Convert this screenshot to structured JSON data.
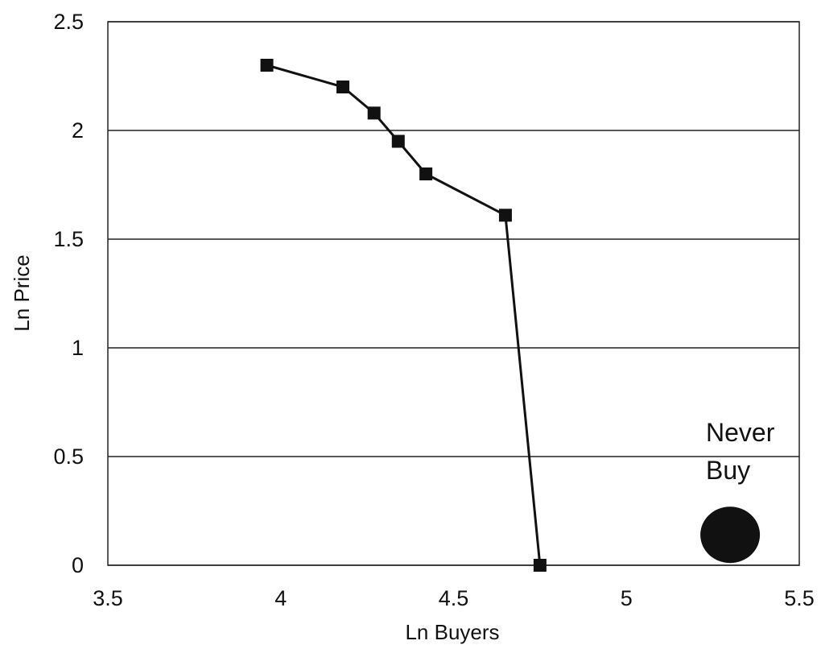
{
  "chart_data": {
    "type": "line",
    "title": "",
    "xlabel": "Ln Buyers",
    "ylabel": "Ln Price",
    "xlim": [
      3.5,
      5.5
    ],
    "ylim": [
      0,
      2.5
    ],
    "x_ticks": [
      "3.5",
      "4",
      "4.5",
      "5",
      "5.5"
    ],
    "y_ticks": [
      "0",
      "0.5",
      "1",
      "1.5",
      "2",
      "2.5"
    ],
    "grid": "horizontal",
    "legend": "none",
    "series": [
      {
        "marker": "square",
        "color": "#111111",
        "x": [
          3.96,
          4.18,
          4.27,
          4.34,
          4.42,
          4.65,
          4.75
        ],
        "y": [
          2.3,
          2.2,
          2.08,
          1.95,
          1.8,
          1.61,
          0.0
        ]
      }
    ],
    "annotations": [
      {
        "text": "Never Buy",
        "lines": [
          "Never",
          "Buy"
        ],
        "marker": "circle",
        "x": 5.3,
        "y": 0.14
      }
    ]
  }
}
